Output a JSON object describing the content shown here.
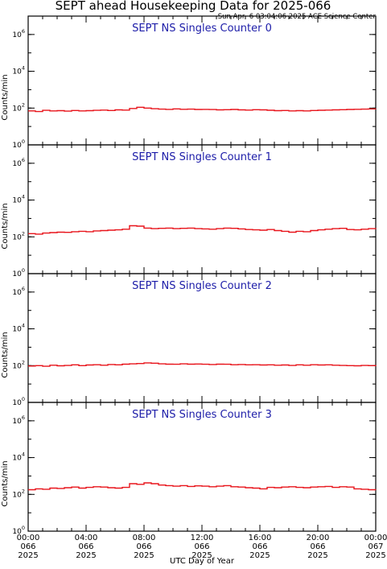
{
  "title": "SEPT ahead Housekeeping Data for 2025-066",
  "timestamp": "Sun Apr  6 03:04:06 2025 ACE Science Center",
  "xlabel": "UTC Day of Year",
  "colors": {
    "trace": "#e8141b",
    "panel_title": "#1c1ca8",
    "axes": "#000000"
  },
  "chart_data": [
    {
      "type": "line",
      "title": "SEPT NS Singles Counter 0",
      "ylabel": "Counts/min",
      "yscale": "log",
      "ylim": [
        1,
        10000000
      ],
      "xlim": [
        0,
        24
      ],
      "series": [
        {
          "x": [
            0,
            0.5,
            1,
            1.5,
            2,
            2.5,
            3,
            3.5,
            4,
            4.5,
            5,
            5.5,
            6,
            6.5,
            7,
            7.5,
            8,
            8.5,
            9,
            9.5,
            10,
            10.5,
            11,
            11.5,
            12,
            12.5,
            13,
            13.5,
            14,
            14.5,
            15,
            15.5,
            16,
            16.5,
            17,
            17.5,
            18,
            18.5,
            19,
            19.5,
            20,
            20.5,
            21,
            21.5,
            22,
            22.5,
            23,
            23.5,
            24
          ],
          "values": [
            70,
            65,
            75,
            70,
            72,
            68,
            74,
            70,
            72,
            75,
            78,
            74,
            80,
            78,
            95,
            110,
            100,
            92,
            88,
            85,
            90,
            86,
            88,
            84,
            85,
            83,
            80,
            82,
            84,
            80,
            78,
            82,
            80,
            76,
            72,
            74,
            70,
            72,
            70,
            74,
            76,
            78,
            80,
            82,
            84,
            86,
            88,
            90,
            92
          ]
        }
      ]
    },
    {
      "type": "line",
      "title": "SEPT NS Singles Counter 1",
      "ylabel": "Counts/min",
      "yscale": "log",
      "ylim": [
        1,
        10000000
      ],
      "xlim": [
        0,
        24
      ],
      "series": [
        {
          "x": [
            0,
            0.5,
            1,
            1.5,
            2,
            2.5,
            3,
            3.5,
            4,
            4.5,
            5,
            5.5,
            6,
            6.5,
            7,
            7.5,
            8,
            8.5,
            9,
            9.5,
            10,
            10.5,
            11,
            11.5,
            12,
            12.5,
            13,
            13.5,
            14,
            14.5,
            15,
            15.5,
            16,
            16.5,
            17,
            17.5,
            18,
            18.5,
            19,
            19.5,
            20,
            20.5,
            21,
            21.5,
            22,
            22.5,
            23,
            23.5,
            24
          ],
          "values": [
            150,
            140,
            160,
            170,
            180,
            175,
            190,
            200,
            190,
            210,
            220,
            230,
            240,
            260,
            400,
            380,
            300,
            280,
            290,
            300,
            280,
            290,
            300,
            280,
            270,
            260,
            280,
            300,
            290,
            270,
            250,
            240,
            230,
            250,
            220,
            200,
            180,
            200,
            190,
            220,
            240,
            260,
            280,
            290,
            250,
            240,
            260,
            280,
            300
          ]
        }
      ]
    },
    {
      "type": "line",
      "title": "SEPT NS Singles Counter 2",
      "ylabel": "Counts/min",
      "yscale": "log",
      "ylim": [
        1,
        10000000
      ],
      "xlim": [
        0,
        24
      ],
      "series": [
        {
          "x": [
            0,
            0.5,
            1,
            1.5,
            2,
            2.5,
            3,
            3.5,
            4,
            4.5,
            5,
            5.5,
            6,
            6.5,
            7,
            7.5,
            8,
            8.5,
            9,
            9.5,
            10,
            10.5,
            11,
            11.5,
            12,
            12.5,
            13,
            13.5,
            14,
            14.5,
            15,
            15.5,
            16,
            16.5,
            17,
            17.5,
            18,
            18.5,
            19,
            19.5,
            20,
            20.5,
            21,
            21.5,
            22,
            22.5,
            23,
            23.5,
            24
          ],
          "values": [
            95,
            100,
            92,
            105,
            98,
            102,
            110,
            100,
            108,
            112,
            105,
            115,
            110,
            120,
            125,
            130,
            140,
            135,
            125,
            120,
            118,
            125,
            120,
            122,
            118,
            115,
            120,
            118,
            112,
            115,
            110,
            112,
            108,
            110,
            105,
            108,
            102,
            110,
            105,
            112,
            108,
            110,
            105,
            102,
            100,
            98,
            102,
            100,
            105
          ]
        }
      ]
    },
    {
      "type": "line",
      "title": "SEPT NS Singles Counter 3",
      "ylabel": "Counts/min",
      "yscale": "log",
      "ylim": [
        1,
        10000000
      ],
      "xlim": [
        0,
        24
      ],
      "series": [
        {
          "x": [
            0,
            0.5,
            1,
            1.5,
            2,
            2.5,
            3,
            3.5,
            4,
            4.5,
            5,
            5.5,
            6,
            6.5,
            7,
            7.5,
            8,
            8.5,
            9,
            9.5,
            10,
            10.5,
            11,
            11.5,
            12,
            12.5,
            13,
            13.5,
            14,
            14.5,
            15,
            15.5,
            16,
            16.5,
            17,
            17.5,
            18,
            18.5,
            19,
            19.5,
            20,
            20.5,
            21,
            21.5,
            22,
            22.5,
            23,
            23.5,
            24
          ],
          "values": [
            180,
            200,
            190,
            220,
            210,
            230,
            250,
            220,
            240,
            260,
            250,
            230,
            220,
            240,
            380,
            350,
            420,
            380,
            320,
            300,
            280,
            300,
            270,
            290,
            280,
            260,
            280,
            300,
            260,
            250,
            230,
            220,
            200,
            240,
            230,
            250,
            260,
            240,
            230,
            250,
            260,
            270,
            240,
            260,
            250,
            200,
            190,
            180,
            175
          ]
        }
      ]
    }
  ],
  "x_ticks": [
    {
      "hour": 0,
      "time": "00:00",
      "doy": "066",
      "year": "2025"
    },
    {
      "hour": 4,
      "time": "04:00",
      "doy": "066",
      "year": "2025"
    },
    {
      "hour": 8,
      "time": "08:00",
      "doy": "066",
      "year": "2025"
    },
    {
      "hour": 12,
      "time": "12:00",
      "doy": "066",
      "year": "2025"
    },
    {
      "hour": 16,
      "time": "16:00",
      "doy": "066",
      "year": "2025"
    },
    {
      "hour": 20,
      "time": "20:00",
      "doy": "066",
      "year": "2025"
    },
    {
      "hour": 24,
      "time": "00:00",
      "doy": "067",
      "year": "2025"
    }
  ],
  "y_ticks": [
    {
      "exp": 0,
      "base": "10",
      "sup": "0"
    },
    {
      "exp": 2,
      "base": "10",
      "sup": "2"
    },
    {
      "exp": 4,
      "base": "10",
      "sup": "4"
    },
    {
      "exp": 6,
      "base": "10",
      "sup": "6"
    }
  ]
}
